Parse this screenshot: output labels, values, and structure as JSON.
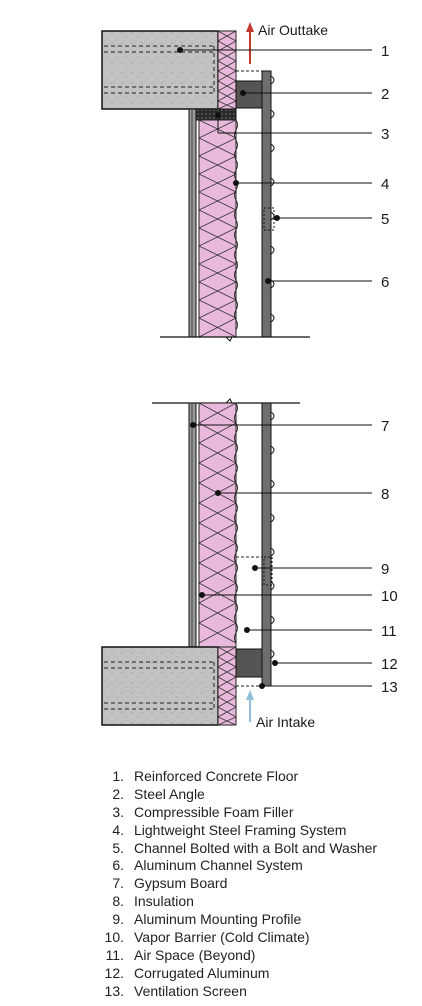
{
  "diagram": {
    "air_outtake_label": "Air Outtake",
    "air_intake_label": "Air Intake",
    "colors": {
      "concrete": "#c2c2c2",
      "insulation": "#e9b9dc",
      "aluminum": "#6e6e6e",
      "outtake_arrow": "#c0392b",
      "intake_arrow": "#8fc0d8",
      "lines": "#111111"
    },
    "callouts": [
      "1",
      "2",
      "3",
      "4",
      "5",
      "6",
      "7",
      "8",
      "9",
      "10",
      "11",
      "12",
      "13"
    ]
  },
  "legend": [
    {
      "num": "1.",
      "label": "Reinforced Concrete Floor"
    },
    {
      "num": "2.",
      "label": "Steel Angle"
    },
    {
      "num": "3.",
      "label": "Compressible Foam Filler"
    },
    {
      "num": "4.",
      "label": "Lightweight Steel Framing System"
    },
    {
      "num": "5.",
      "label": "Channel Bolted with a Bolt and Washer"
    },
    {
      "num": "6.",
      "label": "Aluminum Channel System"
    },
    {
      "num": "7.",
      "label": "Gypsum Board"
    },
    {
      "num": "8.",
      "label": "Insulation"
    },
    {
      "num": "9.",
      "label": "Aluminum Mounting Profile"
    },
    {
      "num": "10.",
      "label": "Vapor Barrier (Cold Climate)"
    },
    {
      "num": "11.",
      "label": "Air Space (Beyond)"
    },
    {
      "num": "12.",
      "label": "Corrugated Aluminum"
    },
    {
      "num": "13.",
      "label": "Ventilation Screen"
    }
  ]
}
